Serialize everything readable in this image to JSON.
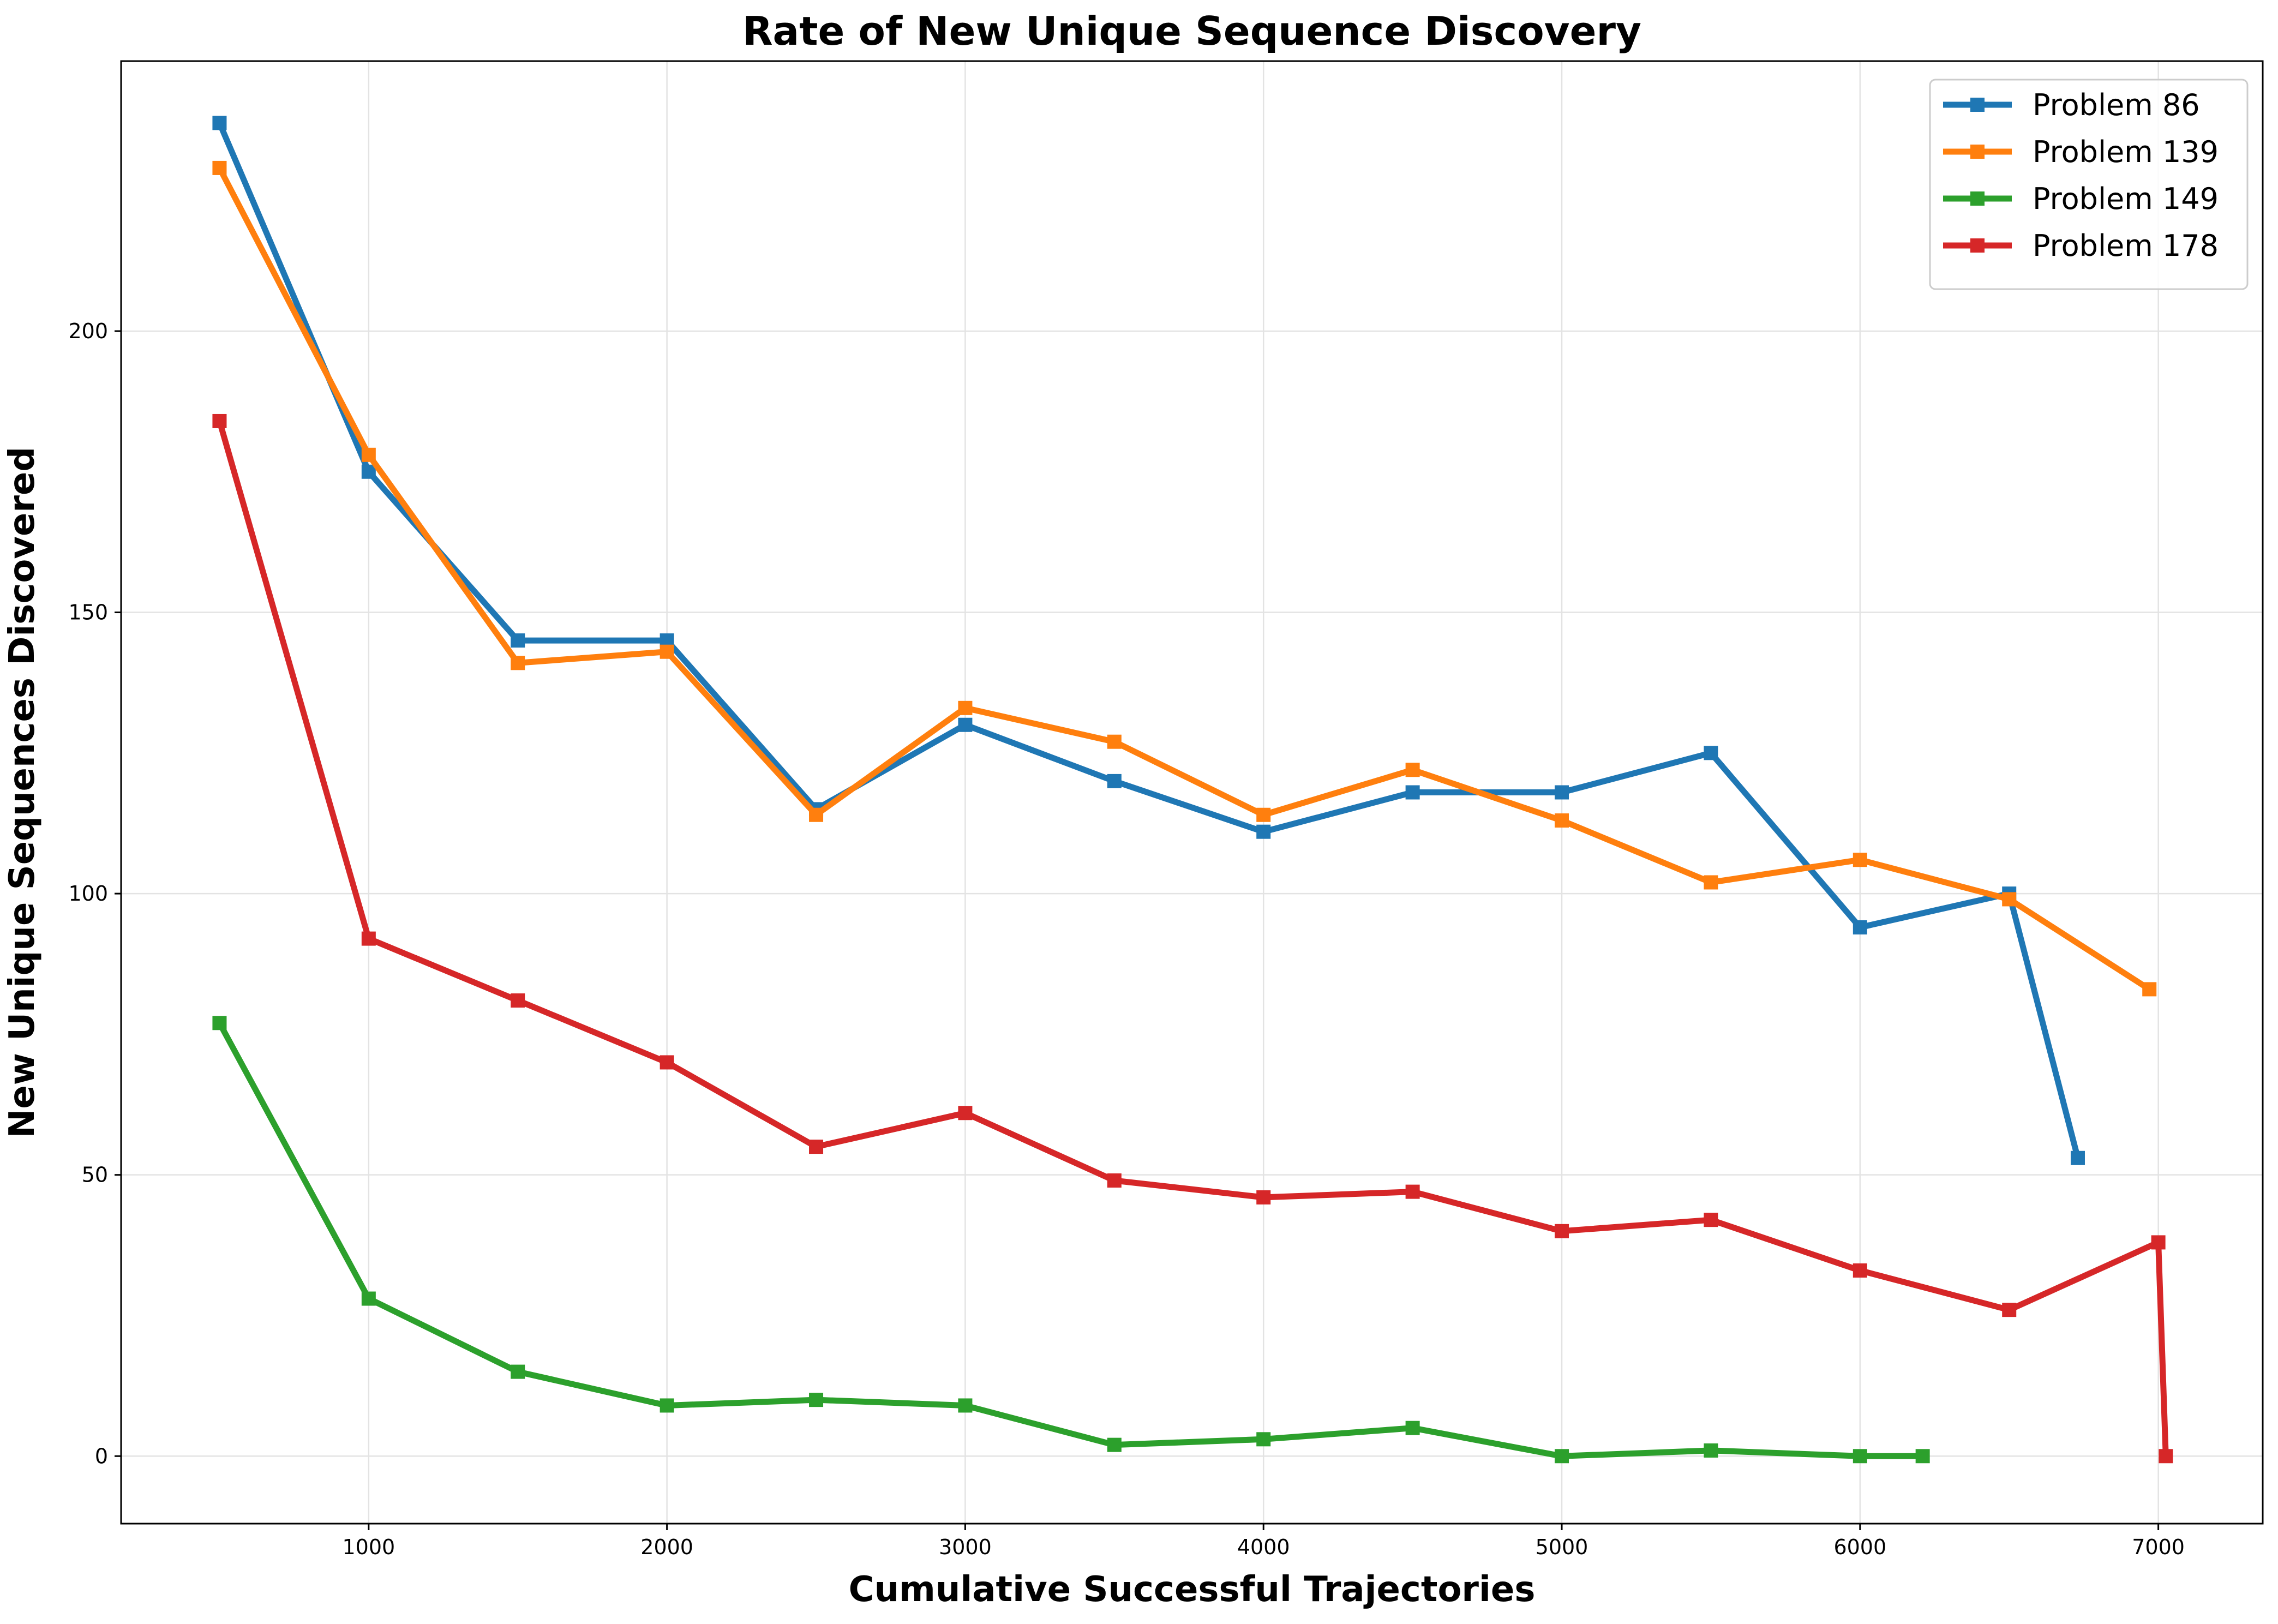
{
  "chart_data": {
    "type": "line",
    "title": "Rate of New Unique Sequence Discovery",
    "xlabel": "Cumulative Successful Trajectories",
    "ylabel": "New Unique Sequences Discovered",
    "xlim": [
      170,
      7350
    ],
    "ylim": [
      -12,
      248
    ],
    "xticks": [
      1000,
      2000,
      3000,
      4000,
      5000,
      6000,
      7000
    ],
    "yticks": [
      0,
      50,
      100,
      150,
      200
    ],
    "grid": true,
    "legend_position": "top-right",
    "marker": "square",
    "series": [
      {
        "name": "Problem 86",
        "color": "#1f77b4",
        "x": [
          500,
          1000,
          1500,
          2000,
          2500,
          3000,
          3500,
          4000,
          4500,
          5000,
          5500,
          6000,
          6500,
          6730
        ],
        "y": [
          237,
          175,
          145,
          145,
          115,
          130,
          120,
          111,
          118,
          118,
          125,
          94,
          100,
          53
        ]
      },
      {
        "name": "Problem 139",
        "color": "#ff7f0e",
        "x": [
          500,
          1000,
          1500,
          2000,
          2500,
          3000,
          3500,
          4000,
          4500,
          5000,
          5500,
          6000,
          6500,
          6970
        ],
        "y": [
          229,
          178,
          141,
          143,
          114,
          133,
          127,
          114,
          122,
          113,
          102,
          106,
          99,
          83
        ]
      },
      {
        "name": "Problem 149",
        "color": "#2ca02c",
        "x": [
          500,
          1000,
          1500,
          2000,
          2500,
          3000,
          3500,
          4000,
          4500,
          5000,
          5500,
          6000,
          6210
        ],
        "y": [
          77,
          28,
          15,
          9,
          10,
          9,
          2,
          3,
          5,
          0,
          1,
          0,
          0
        ]
      },
      {
        "name": "Problem 178",
        "color": "#d62728",
        "x": [
          500,
          1000,
          1500,
          2000,
          2500,
          3000,
          3500,
          4000,
          4500,
          5000,
          5500,
          6000,
          6500,
          7000,
          7025
        ],
        "y": [
          184,
          92,
          81,
          70,
          55,
          61,
          49,
          46,
          47,
          40,
          42,
          33,
          26,
          38,
          0
        ]
      }
    ]
  }
}
